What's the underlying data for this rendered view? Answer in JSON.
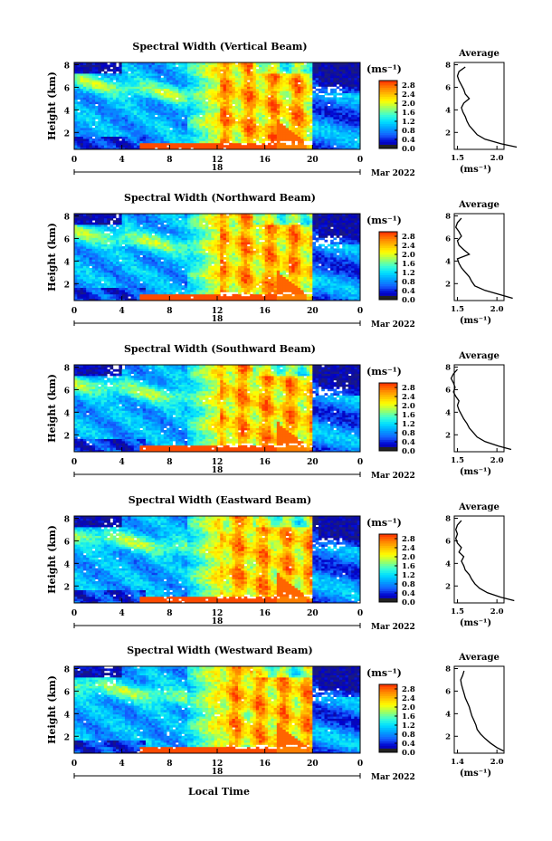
{
  "panels": [
    {
      "title": "Spectral Width (Vertical Beam)",
      "ylabel": "Height (km)",
      "unit": "(ms⁻¹)",
      "date_day": "18",
      "date_label": "Mar 2022",
      "avg_title": "Average",
      "avg_xticks": [
        "1.5",
        "2.0"
      ],
      "avg_unit": "(ms⁻¹)",
      "profile": {
        "heights": [
          0.7,
          1.0,
          1.4,
          1.8,
          2.2,
          2.6,
          3.0,
          3.4,
          3.8,
          4.2,
          4.6,
          5.0,
          5.4,
          5.8,
          6.2,
          6.6,
          7.0,
          7.4,
          7.8
        ],
        "values": [
          2.25,
          2.05,
          1.85,
          1.75,
          1.7,
          1.65,
          1.62,
          1.6,
          1.57,
          1.55,
          1.58,
          1.65,
          1.6,
          1.58,
          1.55,
          1.52,
          1.5,
          1.52,
          1.6
        ]
      }
    },
    {
      "title": "Spectral Width (Northward Beam)",
      "ylabel": "Height (km)",
      "unit": "(ms⁻¹)",
      "date_day": "18",
      "date_label": "Mar 2022",
      "avg_title": "Average",
      "avg_xticks": [
        "1.5",
        "2.0"
      ],
      "avg_unit": "(ms⁻¹)",
      "profile": {
        "heights": [
          0.7,
          1.0,
          1.4,
          1.8,
          2.2,
          2.6,
          3.0,
          3.4,
          3.8,
          4.2,
          4.6,
          5.0,
          5.4,
          5.8,
          6.2,
          6.6,
          7.0,
          7.4,
          7.8
        ],
        "values": [
          2.2,
          2.05,
          1.85,
          1.72,
          1.68,
          1.65,
          1.6,
          1.55,
          1.52,
          1.5,
          1.65,
          1.58,
          1.52,
          1.5,
          1.55,
          1.52,
          1.48,
          1.5,
          1.55
        ]
      }
    },
    {
      "title": "Spectral Width (Southward Beam)",
      "ylabel": "Height (km)",
      "unit": "(ms⁻¹)",
      "date_day": "18",
      "date_label": "Mar 2022",
      "avg_title": "Average",
      "avg_xticks": [
        "1.5",
        "2.0"
      ],
      "avg_unit": "(ms⁻¹)",
      "profile": {
        "heights": [
          0.7,
          1.0,
          1.4,
          1.8,
          2.2,
          2.6,
          3.0,
          3.4,
          3.8,
          4.2,
          4.6,
          5.0,
          5.4,
          5.8,
          6.2,
          6.6,
          7.0,
          7.4,
          7.8
        ],
        "values": [
          2.18,
          2.02,
          1.85,
          1.75,
          1.7,
          1.65,
          1.62,
          1.58,
          1.55,
          1.52,
          1.5,
          1.52,
          1.48,
          1.45,
          1.47,
          1.45,
          1.42,
          1.45,
          1.5
        ]
      }
    },
    {
      "title": "Spectral Width (Eastward Beam)",
      "ylabel": "Height (km)",
      "unit": "(ms⁻¹)",
      "date_day": "18",
      "date_label": "Mar 2022",
      "avg_title": "Average",
      "avg_xticks": [
        "1.5",
        "2.0"
      ],
      "avg_unit": "(ms⁻¹)",
      "profile": {
        "heights": [
          0.7,
          1.0,
          1.4,
          1.8,
          2.2,
          2.6,
          3.0,
          3.4,
          3.8,
          4.2,
          4.6,
          5.0,
          5.4,
          5.8,
          6.2,
          6.6,
          7.0,
          7.4,
          7.8
        ],
        "values": [
          2.22,
          2.05,
          1.88,
          1.78,
          1.72,
          1.68,
          1.65,
          1.6,
          1.58,
          1.55,
          1.58,
          1.52,
          1.55,
          1.5,
          1.48,
          1.5,
          1.48,
          1.5,
          1.55
        ]
      }
    },
    {
      "title": "Spectral Width (Westward Beam)",
      "ylabel": "Height (km)",
      "unit": "(ms⁻¹)",
      "date_day": "18",
      "date_label": "Mar 2022",
      "avg_title": "Average",
      "avg_xticks": [
        "1.4",
        "2.0"
      ],
      "avg_unit": "(ms⁻¹)",
      "profile": {
        "heights": [
          0.7,
          1.0,
          1.4,
          1.8,
          2.2,
          2.6,
          3.0,
          3.4,
          3.8,
          4.2,
          4.6,
          5.0,
          5.4,
          5.8,
          6.2,
          6.6,
          7.0,
          7.4,
          7.8
        ],
        "values": [
          2.1,
          2.0,
          1.9,
          1.82,
          1.75,
          1.7,
          1.68,
          1.65,
          1.62,
          1.6,
          1.58,
          1.55,
          1.52,
          1.5,
          1.48,
          1.46,
          1.45,
          1.48,
          1.5
        ]
      }
    }
  ],
  "xlabel": "Local Time",
  "chart_data": {
    "type": "heatmap",
    "panel_count": 5,
    "x_ticks": [
      "0",
      "4",
      "8",
      "12",
      "16",
      "20",
      "0"
    ],
    "y_ticks": [
      "2",
      "4",
      "6",
      "8"
    ],
    "xlim": [
      0,
      24
    ],
    "ylim": [
      0.5,
      8.2
    ],
    "colorbar_ticks": [
      "0.0",
      "0.4",
      "0.8",
      "1.2",
      "1.6",
      "2.0",
      "2.4",
      "2.8"
    ],
    "colorbar_range": [
      0.0,
      3.0
    ],
    "colormap": [
      "#1a1a80",
      "#0000cd",
      "#1560ff",
      "#00a0ff",
      "#00e0ff",
      "#40ffd0",
      "#a0ff60",
      "#ffff00",
      "#ffc000",
      "#ff8000",
      "#ff3000"
    ],
    "missing_color": "#ffffff"
  }
}
